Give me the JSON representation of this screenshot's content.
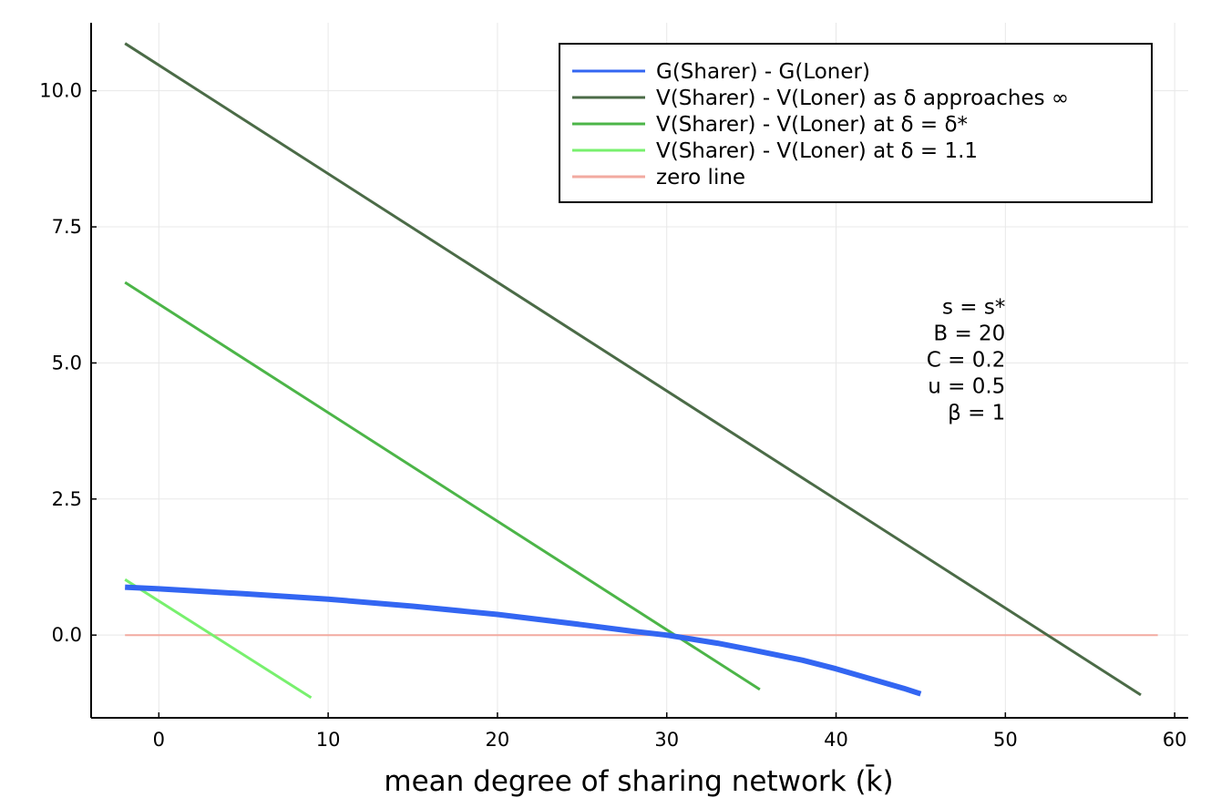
{
  "chart_data": {
    "type": "line",
    "title": "",
    "xlabel": "mean degree of sharing network (k̄)",
    "ylabel": "",
    "xlim": [
      -4,
      60.8
    ],
    "ylim": [
      -1.52,
      11.25
    ],
    "xticks": [
      0,
      10,
      20,
      30,
      40,
      50,
      60
    ],
    "xtick_labels": [
      "0",
      "10",
      "20",
      "30",
      "40",
      "50",
      "60"
    ],
    "yticks": [
      0,
      2.5,
      5,
      7.5,
      10
    ],
    "ytick_labels": [
      "0.0",
      "2.5",
      "5.0",
      "7.5",
      "10.0"
    ],
    "grid": true,
    "legend_position": "top-right",
    "series": [
      {
        "name": "G(Sharer) - G(Loner)",
        "color": "#3366f2",
        "width": 6,
        "x": [
          -2,
          0,
          5,
          10,
          15,
          20,
          25,
          28,
          30,
          33,
          35,
          38,
          40,
          42,
          44,
          45
        ],
        "y": [
          0.88,
          0.85,
          0.76,
          0.66,
          0.53,
          0.38,
          0.19,
          0.07,
          0.0,
          -0.15,
          -0.27,
          -0.46,
          -0.62,
          -0.8,
          -0.98,
          -1.08
        ]
      },
      {
        "name": "V(Sharer) - V(Loner) as δ approaches ∞",
        "color": "#4b6b47",
        "width": 3,
        "x": [
          -2,
          58
        ],
        "y": [
          10.87,
          -1.1
        ]
      },
      {
        "name": "V(Sharer) - V(Loner) at δ = δ*",
        "color": "#4cb548",
        "width": 3,
        "x": [
          -2,
          35.5
        ],
        "y": [
          6.48,
          -1.0
        ]
      },
      {
        "name": "V(Sharer) - V(Loner) at δ = 1.1",
        "color": "#78f06e",
        "width": 3,
        "x": [
          -2,
          9
        ],
        "y": [
          1.02,
          -1.15
        ]
      },
      {
        "name": "zero line",
        "color": "#f2aaa0",
        "width": 2,
        "x": [
          -2,
          59
        ],
        "y": [
          0,
          0
        ]
      }
    ],
    "annotation": {
      "x": 50,
      "y": 5.9,
      "lines": [
        "s = s*",
        "B = 20",
        "C = 0.2",
        "u = 0.5",
        "β = 1"
      ]
    }
  }
}
